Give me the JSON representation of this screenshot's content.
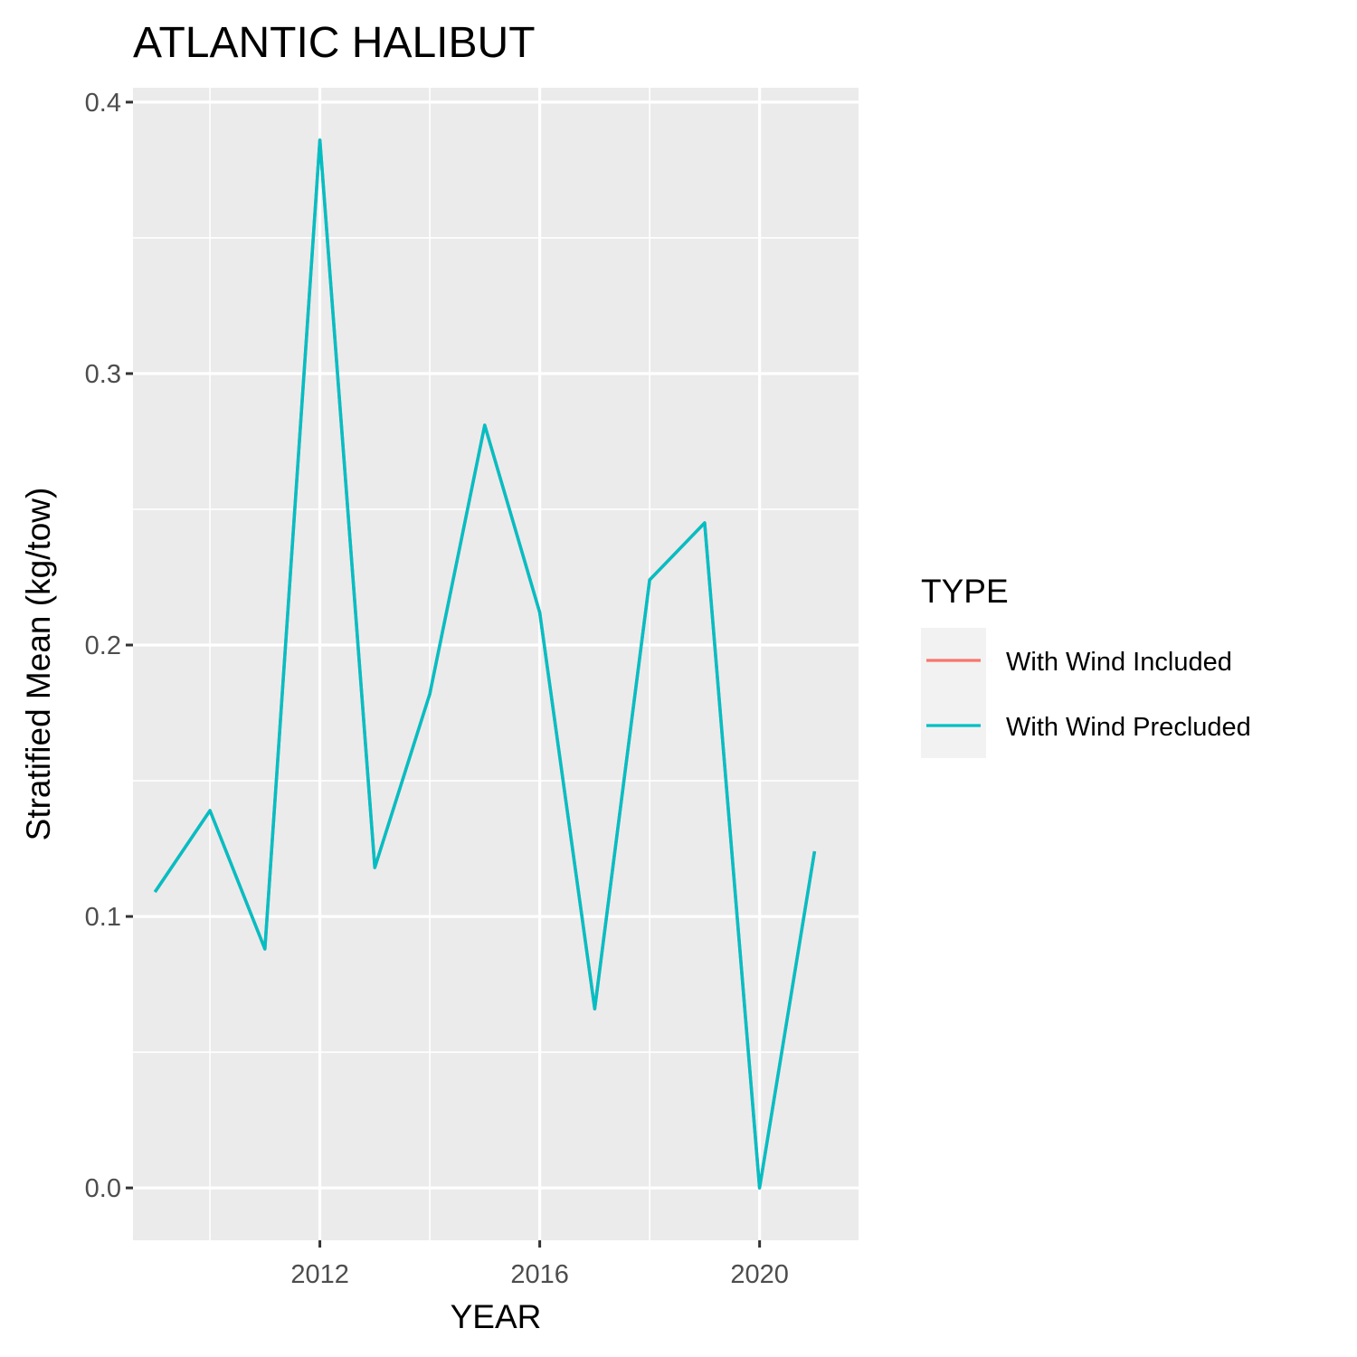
{
  "chart_data": {
    "type": "line",
    "title": "ATLANTIC HALIBUT",
    "xlabel": "YEAR",
    "ylabel": "Stratified Mean (kg/tow)",
    "x": [
      2009,
      2010,
      2011,
      2012,
      2013,
      2014,
      2015,
      2016,
      2017,
      2018,
      2019,
      2020,
      2021
    ],
    "series": [
      {
        "name": "With Wind Included",
        "color": "#F8766D",
        "values": [
          0.109,
          0.139,
          0.088,
          0.386,
          0.118,
          0.182,
          0.281,
          0.212,
          0.066,
          0.224,
          0.245,
          0.0,
          0.124
        ]
      },
      {
        "name": "With Wind Precluded",
        "color": "#00BFC4",
        "values": [
          0.109,
          0.139,
          0.088,
          0.386,
          0.118,
          0.182,
          0.281,
          0.212,
          0.066,
          0.224,
          0.245,
          0.0,
          0.124
        ]
      }
    ],
    "xlim": [
      2008.6,
      2021.8
    ],
    "ylim": [
      -0.0193,
      0.4053
    ],
    "x_ticks": [
      2012,
      2016,
      2020
    ],
    "x_tick_labels": [
      "2012",
      "2016",
      "2020"
    ],
    "y_ticks": [
      0.0,
      0.1,
      0.2,
      0.3,
      0.4
    ],
    "y_tick_labels": [
      "0.0",
      "0.1",
      "0.2",
      "0.3",
      "0.4"
    ],
    "grid": true,
    "legend": {
      "title": "TYPE",
      "position": "right"
    },
    "colors": {
      "panel_background": "#EBEBEB",
      "grid": "#FFFFFF",
      "legend_key_background": "#F2F2F2"
    }
  }
}
